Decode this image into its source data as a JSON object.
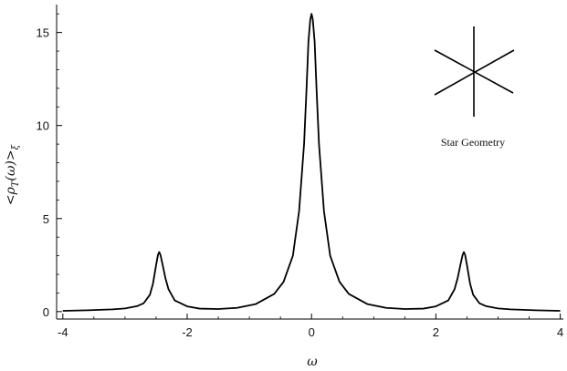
{
  "chart_data": {
    "type": "line",
    "title": "",
    "xlabel": "ω",
    "ylabel": "<ρ",
    "ylabel_sub": "T",
    "ylabel_mid": "(ω)>",
    "ylabel_sub2": "ξ",
    "xlim": [
      -4.1,
      4.05
    ],
    "ylim": [
      -0.4,
      16.5
    ],
    "x_ticks": [
      -4,
      -2,
      0,
      2,
      4
    ],
    "x_tick_labels": [
      "-4",
      "-2",
      "0",
      "2",
      "4"
    ],
    "y_ticks": [
      0,
      5,
      10,
      15
    ],
    "y_tick_labels": [
      "0",
      "5",
      "10",
      "15"
    ],
    "grid": false,
    "series": [
      {
        "color": "#000000",
        "x": [
          -4.0,
          -3.6,
          -3.2,
          -3.0,
          -2.8,
          -2.7,
          -2.6,
          -2.55,
          -2.5,
          -2.47,
          -2.45,
          -2.43,
          -2.4,
          -2.35,
          -2.3,
          -2.2,
          -2.0,
          -1.8,
          -1.5,
          -1.2,
          -0.9,
          -0.6,
          -0.45,
          -0.3,
          -0.2,
          -0.12,
          -0.08,
          -0.05,
          -0.02,
          0.0,
          0.02,
          0.05,
          0.08,
          0.12,
          0.2,
          0.3,
          0.45,
          0.6,
          0.9,
          1.2,
          1.5,
          1.8,
          2.0,
          2.2,
          2.3,
          2.35,
          2.4,
          2.43,
          2.45,
          2.47,
          2.5,
          2.55,
          2.6,
          2.7,
          2.8,
          3.0,
          3.2,
          3.6,
          4.0
        ],
        "y": [
          0.04,
          0.07,
          0.12,
          0.17,
          0.3,
          0.45,
          0.9,
          1.5,
          2.5,
          3.05,
          3.2,
          3.05,
          2.6,
          1.8,
          1.2,
          0.6,
          0.28,
          0.16,
          0.14,
          0.2,
          0.4,
          0.95,
          1.6,
          3.0,
          5.4,
          9.0,
          12.0,
          14.5,
          15.7,
          16.0,
          15.7,
          14.5,
          12.0,
          9.0,
          5.4,
          3.0,
          1.6,
          0.95,
          0.4,
          0.2,
          0.14,
          0.16,
          0.28,
          0.6,
          1.2,
          1.8,
          2.6,
          3.05,
          3.2,
          3.05,
          2.5,
          1.5,
          0.9,
          0.45,
          0.3,
          0.17,
          0.12,
          0.07,
          0.04
        ]
      }
    ],
    "annotations": [
      {
        "text": "Star Geometry"
      }
    ]
  }
}
